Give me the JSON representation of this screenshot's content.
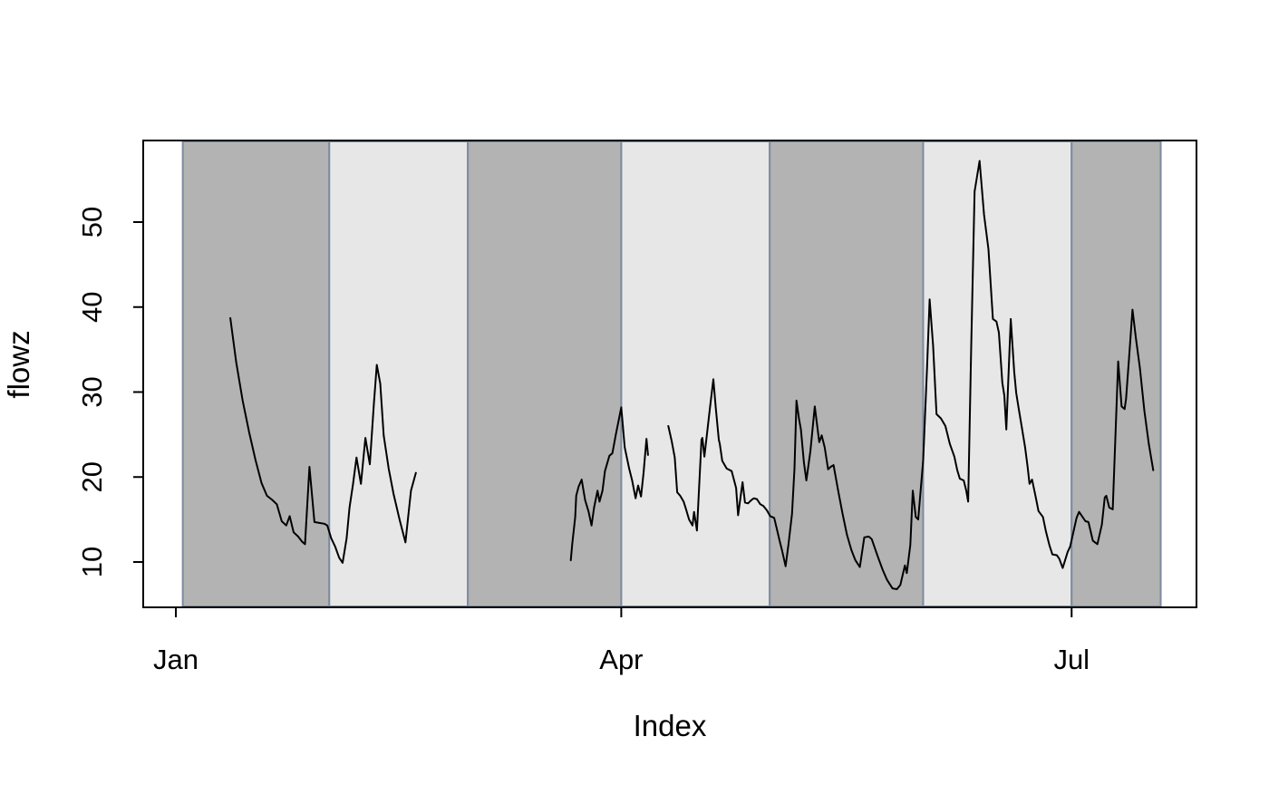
{
  "figure": {
    "background": "#ffffff",
    "plot_frame_color": "#000000",
    "series_line_color": "#000000"
  },
  "chart_data": {
    "type": "line",
    "title": "",
    "xlabel": "Index",
    "ylabel": "flowz",
    "grid": false,
    "legend": "none",
    "x_unit": "day of year (Jan 1 = 0)",
    "x_ticks": [
      {
        "doy": 0,
        "label": "Jan"
      },
      {
        "doy": 90,
        "label": "Apr"
      },
      {
        "doy": 181,
        "label": "Jul"
      }
    ],
    "y_ticks": [
      10,
      20,
      30,
      40,
      50
    ],
    "ylim": [
      4.7,
      59.6
    ],
    "xlim_doy": [
      -6.8,
      206.5
    ],
    "band_colors": {
      "dark": "#b3b3b3",
      "light": "#e7e7e7",
      "border": "#7d8ba0"
    },
    "bands": [
      {
        "start_doy": 1.4,
        "end_doy": 31,
        "shade": "dark",
        "month": "Jan"
      },
      {
        "start_doy": 31,
        "end_doy": 59,
        "shade": "light",
        "month": "Feb"
      },
      {
        "start_doy": 59,
        "end_doy": 90,
        "shade": "dark",
        "month": "Mar"
      },
      {
        "start_doy": 90,
        "end_doy": 120,
        "shade": "light",
        "month": "Apr"
      },
      {
        "start_doy": 120,
        "end_doy": 151,
        "shade": "dark",
        "month": "May"
      },
      {
        "start_doy": 151,
        "end_doy": 181,
        "shade": "light",
        "month": "Jun"
      },
      {
        "start_doy": 181,
        "end_doy": 199,
        "shade": "dark",
        "month": "Jul"
      }
    ],
    "series": [
      {
        "name": "flowz",
        "color": "#000000",
        "segments": [
          [
            [
              11.0,
              38.7
            ],
            [
              12.2,
              33.5
            ],
            [
              13.5,
              29.0
            ],
            [
              14.8,
              25.3
            ],
            [
              16.1,
              22.0
            ],
            [
              17.3,
              19.3
            ],
            [
              18.4,
              17.8
            ],
            [
              19.5,
              17.3
            ],
            [
              20.4,
              16.8
            ],
            [
              21.4,
              14.8
            ],
            [
              22.3,
              14.3
            ],
            [
              23.0,
              15.4
            ],
            [
              23.8,
              13.5
            ],
            [
              24.7,
              13.0
            ],
            [
              25.5,
              12.4
            ],
            [
              26.1,
              12.1
            ],
            [
              27.0,
              21.2
            ],
            [
              28.0,
              14.7
            ],
            [
              29.0,
              14.6
            ],
            [
              30.0,
              14.5
            ],
            [
              30.6,
              14.3
            ],
            [
              31.4,
              12.8
            ],
            [
              32.2,
              11.8
            ],
            [
              33.0,
              10.5
            ],
            [
              33.7,
              9.9
            ],
            [
              34.5,
              12.8
            ],
            [
              35.1,
              16.4
            ],
            [
              35.8,
              19.2
            ],
            [
              36.5,
              22.3
            ],
            [
              37.4,
              19.2
            ],
            [
              38.3,
              24.6
            ],
            [
              39.2,
              21.5
            ],
            [
              40.0,
              28.5
            ],
            [
              40.6,
              33.2
            ],
            [
              41.3,
              31.0
            ],
            [
              42.0,
              24.9
            ],
            [
              43.0,
              21.0
            ],
            [
              44.0,
              18.0
            ],
            [
              45.2,
              15.0
            ],
            [
              46.4,
              12.3
            ],
            [
              47.5,
              18.4
            ],
            [
              48.5,
              20.5
            ]
          ],
          [
            [
              79.8,
              10.2
            ],
            [
              80.1,
              12.1
            ],
            [
              80.7,
              15.3
            ],
            [
              80.9,
              17.8
            ],
            [
              81.4,
              18.9
            ],
            [
              82.0,
              19.7
            ],
            [
              82.7,
              17.3
            ],
            [
              83.4,
              15.9
            ],
            [
              84.0,
              14.3
            ],
            [
              84.5,
              16.4
            ],
            [
              85.2,
              18.4
            ],
            [
              85.6,
              17.1
            ],
            [
              86.2,
              18.4
            ],
            [
              86.7,
              20.7
            ],
            [
              87.6,
              22.5
            ],
            [
              88.2,
              22.8
            ],
            [
              88.9,
              25.0
            ],
            [
              90.0,
              28.2
            ],
            [
              90.7,
              23.5
            ],
            [
              91.6,
              21.0
            ],
            [
              92.2,
              19.6
            ],
            [
              92.9,
              17.5
            ],
            [
              93.4,
              19.0
            ],
            [
              94.0,
              17.7
            ],
            [
              94.5,
              20.5
            ],
            [
              95.1,
              24.5
            ],
            [
              95.4,
              22.6
            ]
          ],
          [
            [
              99.5,
              26.0
            ],
            [
              100.2,
              24.2
            ],
            [
              100.8,
              22.3
            ],
            [
              101.3,
              18.2
            ],
            [
              101.9,
              17.8
            ],
            [
              102.6,
              17.1
            ],
            [
              103.1,
              16.2
            ],
            [
              103.7,
              15.0
            ],
            [
              104.4,
              14.3
            ],
            [
              104.7,
              15.9
            ],
            [
              105.3,
              13.7
            ],
            [
              106.2,
              24.4
            ],
            [
              106.4,
              24.6
            ],
            [
              106.8,
              22.4
            ],
            [
              107.9,
              28.0
            ],
            [
              108.6,
              31.5
            ],
            [
              109.1,
              28.1
            ],
            [
              109.7,
              24.4
            ],
            [
              109.9,
              23.9
            ],
            [
              110.4,
              21.9
            ],
            [
              111.3,
              21.0
            ],
            [
              112.3,
              20.7
            ],
            [
              113.2,
              18.7
            ],
            [
              113.6,
              15.5
            ],
            [
              114.5,
              19.4
            ],
            [
              115.0,
              17.0
            ],
            [
              115.6,
              16.9
            ],
            [
              116.3,
              17.3
            ],
            [
              116.8,
              17.5
            ],
            [
              117.4,
              17.4
            ],
            [
              118.1,
              16.8
            ],
            [
              118.7,
              16.6
            ],
            [
              119.4,
              16.1
            ],
            [
              120.1,
              15.4
            ],
            [
              120.9,
              15.2
            ],
            [
              121.4,
              14.0
            ],
            [
              122.0,
              12.5
            ],
            [
              122.5,
              11.3
            ],
            [
              123.2,
              9.5
            ],
            [
              123.8,
              12.1
            ],
            [
              124.5,
              15.7
            ],
            [
              125.0,
              21.0
            ],
            [
              125.4,
              29.0
            ],
            [
              125.9,
              26.9
            ],
            [
              126.3,
              25.6
            ],
            [
              126.9,
              21.7
            ],
            [
              127.4,
              19.6
            ],
            [
              128.2,
              23.0
            ],
            [
              129.1,
              28.3
            ],
            [
              130.0,
              24.1
            ],
            [
              130.5,
              24.9
            ],
            [
              131.1,
              23.5
            ],
            [
              131.8,
              20.9
            ],
            [
              132.3,
              21.2
            ],
            [
              132.9,
              21.4
            ],
            [
              133.8,
              18.5
            ],
            [
              134.7,
              15.7
            ],
            [
              135.6,
              13.2
            ],
            [
              136.5,
              11.4
            ],
            [
              137.3,
              10.2
            ],
            [
              138.2,
              9.4
            ],
            [
              139.1,
              12.9
            ],
            [
              140.0,
              13.0
            ],
            [
              140.6,
              12.7
            ],
            [
              141.8,
              10.7
            ],
            [
              142.8,
              9.1
            ],
            [
              143.7,
              7.9
            ],
            [
              144.8,
              6.9
            ],
            [
              145.7,
              6.8
            ],
            [
              146.4,
              7.3
            ],
            [
              147.3,
              9.6
            ],
            [
              147.7,
              8.7
            ],
            [
              148.4,
              12.0
            ],
            [
              148.9,
              18.4
            ],
            [
              149.5,
              15.3
            ],
            [
              150.0,
              15.0
            ],
            [
              151.0,
              22.0
            ],
            [
              151.8,
              33.0
            ],
            [
              152.3,
              40.9
            ],
            [
              153.0,
              35.5
            ],
            [
              153.7,
              27.4
            ],
            [
              154.6,
              26.9
            ],
            [
              155.5,
              26.0
            ],
            [
              156.4,
              23.9
            ],
            [
              157.3,
              22.4
            ],
            [
              157.9,
              20.8
            ],
            [
              158.4,
              19.8
            ],
            [
              159.2,
              19.6
            ],
            [
              159.7,
              18.4
            ],
            [
              160.1,
              17.1
            ],
            [
              160.7,
              35.0
            ],
            [
              161.4,
              53.6
            ],
            [
              162.4,
              57.2
            ],
            [
              163.3,
              50.9
            ],
            [
              164.2,
              46.8
            ],
            [
              165.1,
              38.6
            ],
            [
              165.8,
              38.3
            ],
            [
              166.3,
              37.0
            ],
            [
              167.0,
              31.1
            ],
            [
              167.4,
              29.6
            ],
            [
              167.8,
              25.6
            ],
            [
              168.7,
              38.6
            ],
            [
              169.4,
              32.4
            ],
            [
              169.8,
              29.9
            ],
            [
              170.3,
              28.1
            ],
            [
              171.0,
              25.6
            ],
            [
              171.6,
              23.5
            ],
            [
              172.1,
              21.2
            ],
            [
              172.5,
              19.2
            ],
            [
              173.0,
              19.7
            ],
            [
              173.8,
              17.5
            ],
            [
              174.3,
              16.0
            ],
            [
              175.2,
              15.3
            ],
            [
              175.8,
              13.6
            ],
            [
              176.5,
              12.0
            ],
            [
              177.1,
              10.9
            ],
            [
              178.0,
              10.8
            ],
            [
              178.5,
              10.4
            ],
            [
              179.2,
              9.3
            ],
            [
              180.2,
              11.2
            ],
            [
              180.7,
              11.8
            ],
            [
              182.0,
              15.2
            ],
            [
              182.5,
              15.9
            ],
            [
              183.8,
              14.8
            ],
            [
              184.4,
              14.7
            ],
            [
              185.3,
              12.5
            ],
            [
              186.2,
              12.1
            ],
            [
              187.1,
              14.4
            ],
            [
              187.7,
              17.6
            ],
            [
              188.0,
              17.8
            ],
            [
              188.6,
              16.4
            ],
            [
              189.3,
              16.2
            ],
            [
              189.8,
              24.0
            ],
            [
              190.4,
              33.6
            ],
            [
              191.1,
              28.3
            ],
            [
              191.7,
              28.0
            ],
            [
              192.0,
              29.2
            ],
            [
              192.6,
              34.0
            ],
            [
              193.3,
              39.7
            ],
            [
              194.0,
              36.3
            ],
            [
              194.8,
              32.8
            ],
            [
              195.7,
              27.8
            ],
            [
              196.6,
              23.9
            ],
            [
              197.5,
              20.8
            ]
          ]
        ]
      }
    ]
  }
}
